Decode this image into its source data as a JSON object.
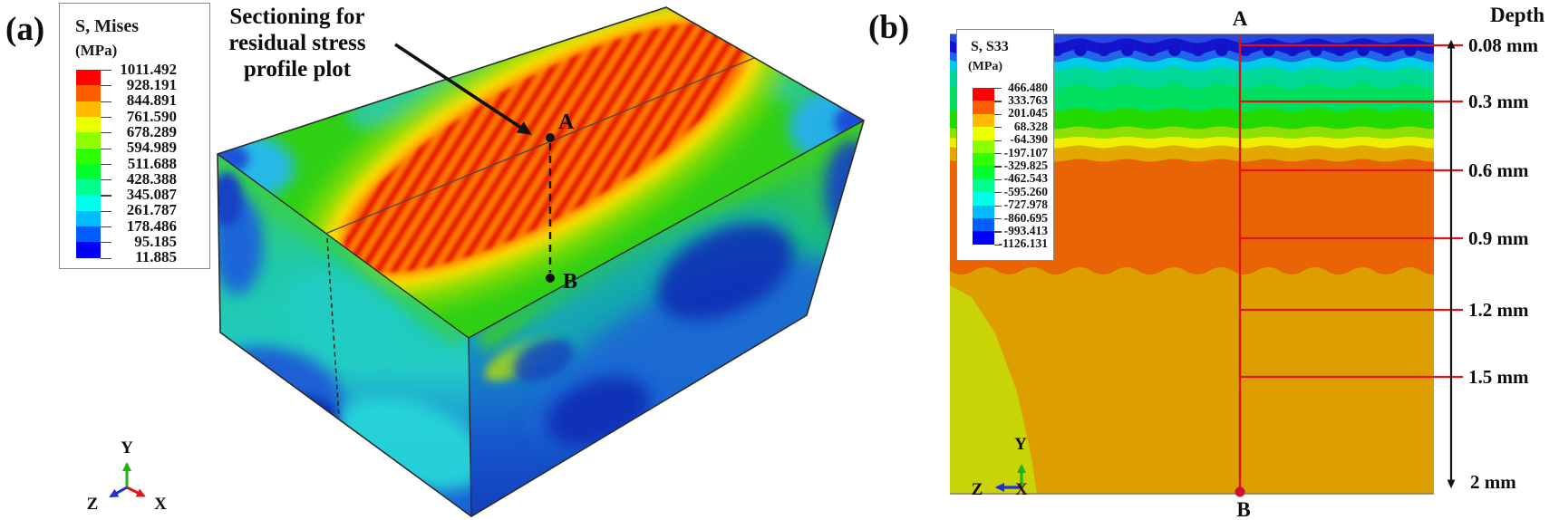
{
  "panels": {
    "a_label": "(a)",
    "b_label": "(b)"
  },
  "panel_a": {
    "legend": {
      "title": "S, Mises",
      "units": "(MPa)",
      "values": [
        "1011.492",
        "928.191",
        "844.891",
        "761.590",
        "678.289",
        "594.989",
        "511.688",
        "428.388",
        "345.087",
        "261.787",
        "178.486",
        "95.185",
        "11.885"
      ]
    },
    "annotation": {
      "text_lines": [
        "Sectioning for",
        "residual stress",
        "profile plot"
      ]
    },
    "point_a": "A",
    "point_b": "B",
    "triad": {
      "x": "X",
      "y": "Y",
      "z": "Z"
    }
  },
  "panel_b": {
    "legend": {
      "title": "S, S33",
      "units": "(MPa)",
      "values": [
        "466.480",
        "333.763",
        "201.045",
        "68.328",
        "-64.390",
        "-197.107",
        "-329.825",
        "-462.543",
        "-595.260",
        "-727.978",
        "-860.695",
        "-993.413",
        "-1126.131"
      ]
    },
    "depth_axis": {
      "title": "Depth",
      "markers": [
        "0.08 mm",
        "0.3 mm",
        "0.6 mm",
        "0.9 mm",
        "1.2 mm",
        "1.5 mm",
        "2 mm"
      ]
    },
    "point_a": "A",
    "point_b": "B",
    "triad": {
      "x": "X",
      "y": "Y",
      "z": "Z"
    }
  },
  "colors": {
    "contour_scale": [
      "#ff0000",
      "#ff5e00",
      "#ffbb00",
      "#eaff00",
      "#8cff00",
      "#2fff00",
      "#00ff2f",
      "#00ff8c",
      "#00ffea",
      "#00bbff",
      "#005eff",
      "#0000ff"
    ],
    "section_path_red": "#e01212",
    "depth_axis_black": "#111111",
    "axis_x_red": "#e01616",
    "axis_y_green": "#1db414",
    "axis_z_blue": "#1f2fd8"
  }
}
